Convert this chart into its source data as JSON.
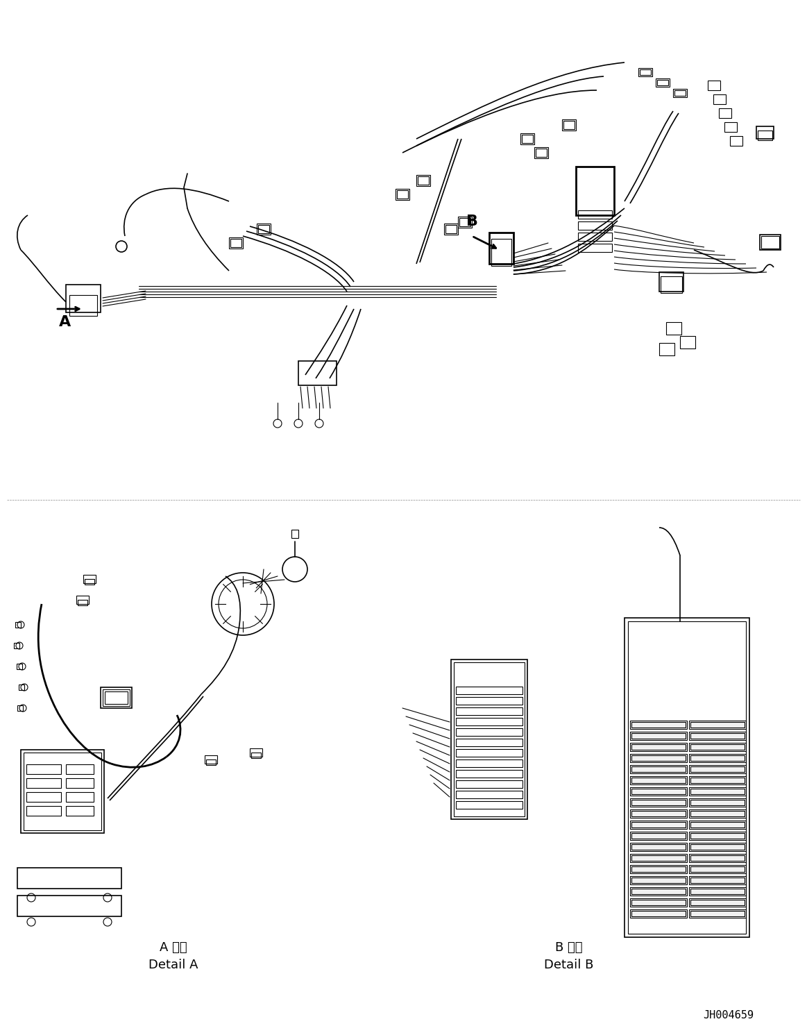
{
  "title": "",
  "background_color": "#ffffff",
  "line_color": "#000000",
  "label_A": "A",
  "label_B": "B",
  "detail_A_jp": "A 詳細",
  "detail_A_en": "Detail A",
  "detail_B_jp": "B 詳細",
  "detail_B_en": "Detail B",
  "part_number": "JH004659",
  "fig_width": 11.63,
  "fig_height": 14.88,
  "dpi": 100
}
